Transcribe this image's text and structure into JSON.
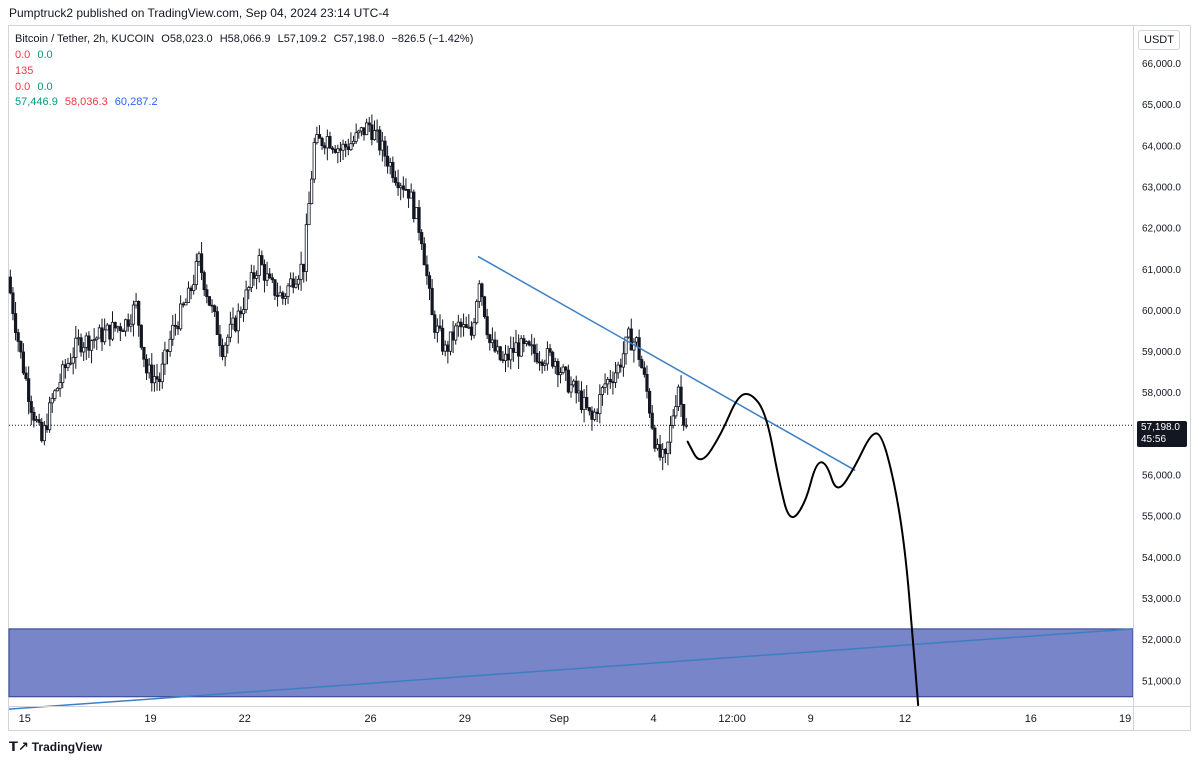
{
  "header": {
    "published": "Pumptruck2 published on TradingView.com, Sep 04, 2024 23:14 UTC-4"
  },
  "legend": {
    "symbol": "Bitcoin / Tether, 2h, KUCOIN",
    "o_label": "O",
    "o_value": "58,023.0",
    "h_label": "H",
    "h_value": "58,066.9",
    "l_label": "L",
    "l_value": "57,109.2",
    "c_label": "C",
    "c_value": "57,198.0",
    "change": "−826.5 (−1.42%)",
    "row2": [
      "0.0",
      "0.0"
    ],
    "row3": "135",
    "row4": [
      "0.0",
      "0.0"
    ],
    "row5": [
      "57,446.9",
      "58,036.3",
      "60,287.2"
    ]
  },
  "currency": "USDT",
  "current_price": {
    "value": "57,198.0",
    "countdown": "45:56"
  },
  "footer": {
    "logo_icon": "tradingview-logo-icon",
    "brand": "TradingView"
  },
  "colors": {
    "up": "#131722",
    "down": "#131722",
    "trendline": "#3d7fc4",
    "zone": "#7885c8",
    "drawing": "#000000"
  },
  "chart_data": {
    "type": "candlestick",
    "symbol": "BTC/USDT",
    "interval": "2h",
    "ylim": [
      50400,
      66900
    ],
    "y_ticks": [
      51000,
      52000,
      53000,
      54000,
      55000,
      56000,
      57000,
      58000,
      59000,
      60000,
      61000,
      62000,
      63000,
      64000,
      65000,
      66000
    ],
    "y_tick_labels": [
      "51,000.0",
      "52,000.0",
      "53,000.0",
      "54,000.0",
      "55,000.0",
      "56,000.0",
      "57,000.0",
      "58,000.0",
      "59,000.0",
      "60,000.0",
      "61,000.0",
      "62,000.0",
      "63,000.0",
      "64,000.0",
      "65,000.0",
      "66,000.0"
    ],
    "x_range": [
      "2024-08-14T12:00",
      "2024-09-19T06:00"
    ],
    "x_ticks": [
      {
        "t": "2024-08-15T00:00",
        "label": "15"
      },
      {
        "t": "2024-08-19T00:00",
        "label": "19"
      },
      {
        "t": "2024-08-22T00:00",
        "label": "22"
      },
      {
        "t": "2024-08-26T00:00",
        "label": "26"
      },
      {
        "t": "2024-08-29T00:00",
        "label": "29"
      },
      {
        "t": "2024-09-01T00:00",
        "label": "Sep"
      },
      {
        "t": "2024-09-04T00:00",
        "label": "4"
      },
      {
        "t": "2024-09-06T12:00",
        "label": "12:00"
      },
      {
        "t": "2024-09-09T00:00",
        "label": "9"
      },
      {
        "t": "2024-09-12T00:00",
        "label": "12"
      },
      {
        "t": "2024-09-16T00:00",
        "label": "16"
      },
      {
        "t": "2024-09-19T00:00",
        "label": "19"
      }
    ],
    "price_path": [
      [
        "2024-08-14T12:00",
        60800
      ],
      [
        "2024-08-14T22:00",
        58900
      ],
      [
        "2024-08-15T06:00",
        57700
      ],
      [
        "2024-08-15T14:00",
        56800
      ],
      [
        "2024-08-15T22:00",
        57800
      ],
      [
        "2024-08-16T08:00",
        58600
      ],
      [
        "2024-08-16T18:00",
        59200
      ],
      [
        "2024-08-17T06:00",
        59300
      ],
      [
        "2024-08-17T18:00",
        59500
      ],
      [
        "2024-08-18T06:00",
        59700
      ],
      [
        "2024-08-18T14:00",
        60100
      ],
      [
        "2024-08-18T22:00",
        58500
      ],
      [
        "2024-08-19T08:00",
        58300
      ],
      [
        "2024-08-19T18:00",
        59500
      ],
      [
        "2024-08-20T06:00",
        60300
      ],
      [
        "2024-08-20T14:00",
        61200
      ],
      [
        "2024-08-20T22:00",
        60200
      ],
      [
        "2024-08-21T08:00",
        59100
      ],
      [
        "2024-08-21T18:00",
        59700
      ],
      [
        "2024-08-22T04:00",
        60500
      ],
      [
        "2024-08-22T12:00",
        61200
      ],
      [
        "2024-08-22T20:00",
        60600
      ],
      [
        "2024-08-23T06:00",
        60300
      ],
      [
        "2024-08-23T14:00",
        60800
      ],
      [
        "2024-08-23T22:00",
        61100
      ],
      [
        "2024-08-24T06:00",
        64000
      ],
      [
        "2024-08-24T16:00",
        64200
      ],
      [
        "2024-08-25T02:00",
        63900
      ],
      [
        "2024-08-25T12:00",
        64100
      ],
      [
        "2024-08-26T00:00",
        64500
      ],
      [
        "2024-08-26T10:00",
        63900
      ],
      [
        "2024-08-26T20:00",
        63300
      ],
      [
        "2024-08-27T06:00",
        62900
      ],
      [
        "2024-08-27T16:00",
        61800
      ],
      [
        "2024-08-28T00:00",
        59800
      ],
      [
        "2024-08-28T10:00",
        59000
      ],
      [
        "2024-08-28T20:00",
        59600
      ],
      [
        "2024-08-29T06:00",
        59400
      ],
      [
        "2024-08-29T12:00",
        60800
      ],
      [
        "2024-08-29T20:00",
        59200
      ],
      [
        "2024-08-30T06:00",
        58700
      ],
      [
        "2024-08-30T16:00",
        59100
      ],
      [
        "2024-08-31T02:00",
        59000
      ],
      [
        "2024-08-31T12:00",
        58900
      ],
      [
        "2024-08-31T22:00",
        58800
      ],
      [
        "2024-09-01T06:00",
        58300
      ],
      [
        "2024-09-01T16:00",
        57900
      ],
      [
        "2024-09-02T02:00",
        57300
      ],
      [
        "2024-09-02T12:00",
        58200
      ],
      [
        "2024-09-02T22:00",
        58600
      ],
      [
        "2024-09-03T06:00",
        59300
      ],
      [
        "2024-09-03T12:00",
        59200
      ],
      [
        "2024-09-03T20:00",
        58000
      ],
      [
        "2024-09-04T04:00",
        56500
      ],
      [
        "2024-09-04T10:00",
        56300
      ],
      [
        "2024-09-04T16:00",
        57500
      ],
      [
        "2024-09-04T20:00",
        58200
      ],
      [
        "2024-09-05T00:00",
        57198
      ]
    ],
    "last_close": 57198,
    "trendline_down": [
      [
        "2024-08-29T10:00",
        61300
      ],
      [
        "2024-09-10T10:00",
        56100
      ]
    ],
    "trendline_up": [
      [
        "2024-08-14T12:00",
        50300
      ],
      [
        "2024-09-19T06:00",
        52250
      ]
    ],
    "demand_zone": {
      "y_top": 52250,
      "y_bottom": 50600
    },
    "hand_drawn_projection": [
      [
        "2024-09-05T02:00",
        56800
      ],
      [
        "2024-09-05T12:00",
        56200
      ],
      [
        "2024-09-06T04:00",
        57000
      ],
      [
        "2024-09-06T16:00",
        57900
      ],
      [
        "2024-09-07T02:00",
        58000
      ],
      [
        "2024-09-07T14:00",
        57500
      ],
      [
        "2024-09-08T00:00",
        55800
      ],
      [
        "2024-09-08T08:00",
        54800
      ],
      [
        "2024-09-08T20:00",
        55300
      ],
      [
        "2024-09-09T04:00",
        56300
      ],
      [
        "2024-09-09T12:00",
        56300
      ],
      [
        "2024-09-09T20:00",
        55500
      ],
      [
        "2024-09-10T10:00",
        56200
      ],
      [
        "2024-09-10T22:00",
        57000
      ],
      [
        "2024-09-11T06:00",
        57000
      ],
      [
        "2024-09-11T16:00",
        55800
      ],
      [
        "2024-09-12T00:00",
        54200
      ],
      [
        "2024-09-12T06:00",
        52000
      ],
      [
        "2024-09-12T10:00",
        50400
      ]
    ]
  }
}
